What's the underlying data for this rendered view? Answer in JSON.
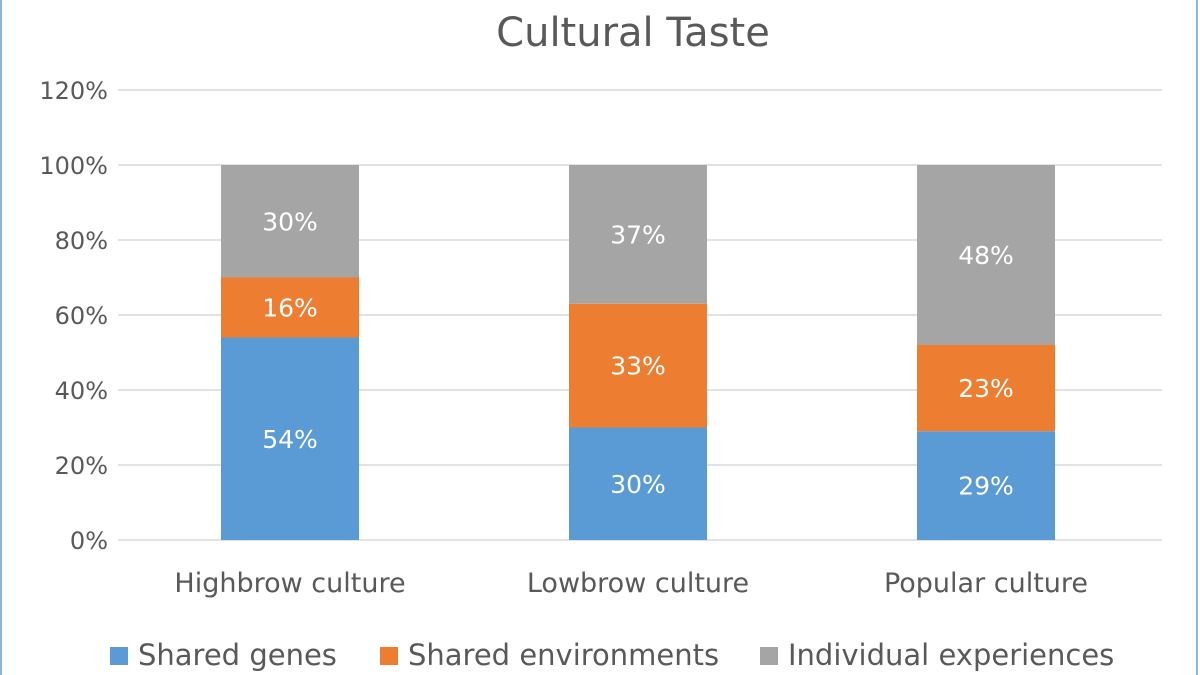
{
  "chart_data": {
    "type": "bar",
    "stacked": true,
    "title": "Cultural Taste",
    "categories": [
      "Highbrow culture",
      "Lowbrow culture",
      "Popular culture"
    ],
    "series": [
      {
        "name": "Shared genes",
        "values": [
          54,
          30,
          29
        ],
        "color": "#5b9bd5",
        "labels": [
          "54%",
          "30%",
          "29%"
        ]
      },
      {
        "name": "Shared environments",
        "values": [
          16,
          33,
          23
        ],
        "color": "#ed7d31",
        "labels": [
          "16%",
          "33%",
          "23%"
        ]
      },
      {
        "name": "Individual experiences",
        "values": [
          30,
          37,
          48
        ],
        "color": "#a5a5a5",
        "labels": [
          "30%",
          "37%",
          "48%"
        ]
      }
    ],
    "ylim": [
      0,
      120
    ],
    "yticks": [
      "0%",
      "20%",
      "40%",
      "60%",
      "80%",
      "100%",
      "120%"
    ],
    "grid": true,
    "legend": "bottom"
  }
}
